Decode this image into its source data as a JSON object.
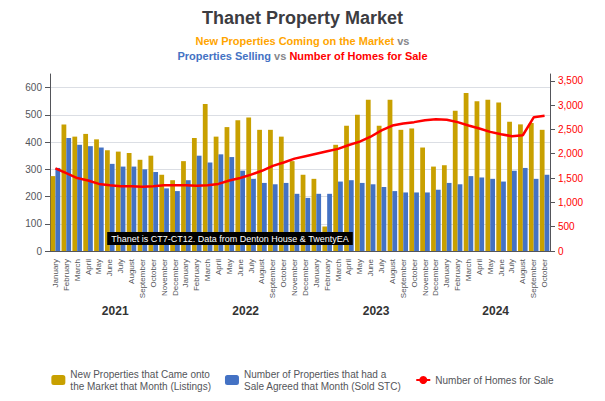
{
  "chart_data": {
    "type": "bar",
    "title": "Thanet Property Market",
    "subtitle": [
      [
        {
          "text": "New Properties Coming on the Market",
          "color": "#FFA500"
        },
        {
          "text": " vs"
        }
      ],
      [
        {
          "text": "Properties Selling",
          "color": "#4472C4"
        },
        {
          "text": " vs "
        },
        {
          "text": "Number of Homes for Sale",
          "color": "#FF0000"
        }
      ]
    ],
    "annotation": "Thanet is CT7-CT12. Data from Denton House & TwentyEA",
    "categories": [
      "January",
      "February",
      "March",
      "April",
      "May",
      "June",
      "July",
      "August",
      "September",
      "October",
      "November",
      "December",
      "January",
      "February",
      "March",
      "April",
      "May",
      "June",
      "July",
      "August",
      "September",
      "October",
      "November",
      "December",
      "January",
      "February",
      "March",
      "April",
      "May",
      "June",
      "July",
      "August",
      "September",
      "October",
      "November",
      "December",
      "January",
      "February",
      "March",
      "April",
      "May",
      "June",
      "July",
      "August",
      "September",
      "October"
    ],
    "years": [
      2021,
      2021,
      2021,
      2021,
      2021,
      2021,
      2021,
      2021,
      2021,
      2021,
      2021,
      2021,
      2022,
      2022,
      2022,
      2022,
      2022,
      2022,
      2022,
      2022,
      2022,
      2022,
      2022,
      2022,
      2023,
      2023,
      2023,
      2023,
      2023,
      2023,
      2023,
      2023,
      2023,
      2023,
      2023,
      2023,
      2024,
      2024,
      2024,
      2024,
      2024,
      2024,
      2024,
      2024,
      2024,
      2024
    ],
    "series": [
      {
        "name": "New Properties that Came onto\nthe Market that Month (Listings)",
        "color": "#C8A000",
        "values": [
          275,
          465,
          420,
          430,
          410,
          370,
          365,
          360,
          335,
          350,
          280,
          260,
          330,
          415,
          540,
          420,
          455,
          480,
          490,
          445,
          445,
          420,
          330,
          280,
          265,
          90,
          390,
          460,
          500,
          555,
          460,
          555,
          445,
          450,
          380,
          310,
          315,
          515,
          580,
          550,
          555,
          545,
          475,
          465,
          470,
          445
        ]
      },
      {
        "name": "Number of Properties that had a\nSale Agreed that Month (Sold STC)",
        "color": "#4472C4",
        "values": [
          305,
          415,
          390,
          385,
          380,
          320,
          310,
          310,
          300,
          290,
          230,
          220,
          260,
          350,
          325,
          355,
          345,
          295,
          265,
          250,
          245,
          250,
          210,
          195,
          210,
          210,
          255,
          260,
          250,
          245,
          235,
          220,
          215,
          215,
          215,
          225,
          250,
          245,
          275,
          270,
          265,
          255,
          295,
          305,
          265,
          280
        ]
      },
      {
        "name": "Number of Homes for Sale",
        "type": "line",
        "axis": "y2",
        "color": "#FF0000",
        "values": [
          1700,
          1600,
          1500,
          1450,
          1380,
          1350,
          1330,
          1330,
          1320,
          1330,
          1350,
          1350,
          1350,
          1340,
          1350,
          1380,
          1450,
          1500,
          1570,
          1650,
          1750,
          1820,
          1900,
          1950,
          2000,
          2050,
          2100,
          2180,
          2250,
          2350,
          2480,
          2580,
          2620,
          2650,
          2690,
          2710,
          2700,
          2650,
          2580,
          2520,
          2450,
          2400,
          2360,
          2380,
          2750,
          2780
        ]
      }
    ],
    "ylim": [
      0,
      650
    ],
    "yticks": [
      0,
      100,
      200,
      300,
      400,
      500,
      600
    ],
    "y2lim": [
      0,
      3640
    ],
    "y2ticks": [
      0,
      500,
      {
        "value": 1000,
        "label": "1,000"
      },
      {
        "value": 1500,
        "label": "1,500"
      },
      {
        "value": 2000,
        "label": "2,000"
      },
      {
        "value": 2500,
        "label": "2,500"
      },
      {
        "value": 3000,
        "label": "3,000"
      },
      {
        "value": 3500,
        "label": "3,500"
      }
    ],
    "grid": true,
    "legend": "bottom"
  }
}
